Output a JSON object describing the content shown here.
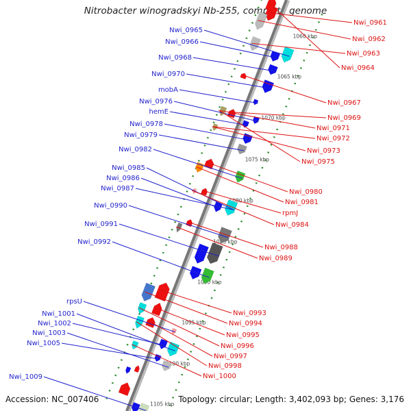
{
  "title": "Nitrobacter winogradskyi Nb-255, complete genome",
  "footer": {
    "accession": "Accession: NC_007406",
    "summary": "Topology: circular; Length: 3,402,093 bp; Genes: 3,176"
  },
  "colors": {
    "plus_label": "#1f1fcc",
    "minus_label": "#dd1111",
    "backbone": "#777777",
    "ticks": "#2a8a2a"
  },
  "kbp_ticks": [
    "1060 kbp",
    "1065 kbp",
    "1070 kbp",
    "1075 kbp",
    "1080 kbp",
    "1085 kbp",
    "1090 kbp",
    "1095 kbp",
    "1100 kbp",
    "1105 kbp"
  ],
  "plus_labels": [
    "Nwi_0965",
    "Nwi_0966",
    "Nwi_0968",
    "Nwi_0970",
    "mobA",
    "Nwi_0976",
    "hemE",
    "Nwi_0978",
    "Nwi_0979",
    "Nwi_0982",
    "Nwi_0985",
    "Nwi_0986",
    "Nwi_0987",
    "Nwi_0990",
    "Nwi_0991",
    "Nwi_0992",
    "rpsU",
    "Nwi_1001",
    "Nwi_1002",
    "Nwi_1003",
    "Nwi_1005",
    "Nwi_1009"
  ],
  "minus_labels": [
    "Nwi_0961",
    "Nwi_0962",
    "Nwi_0963",
    "Nwi_0964",
    "Nwi_0967",
    "Nwi_0969",
    "Nwi_0971",
    "Nwi_0972",
    "Nwi_0973",
    "Nwi_0975",
    "Nwi_0980",
    "Nwi_0981",
    "rpmJ",
    "Nwi_0984",
    "Nwi_0988",
    "Nwi_0989",
    "Nwi_0993",
    "Nwi_0994",
    "Nwi_0995",
    "Nwi_0996",
    "Nwi_0997",
    "Nwi_0998",
    "Nwi_1000"
  ]
}
